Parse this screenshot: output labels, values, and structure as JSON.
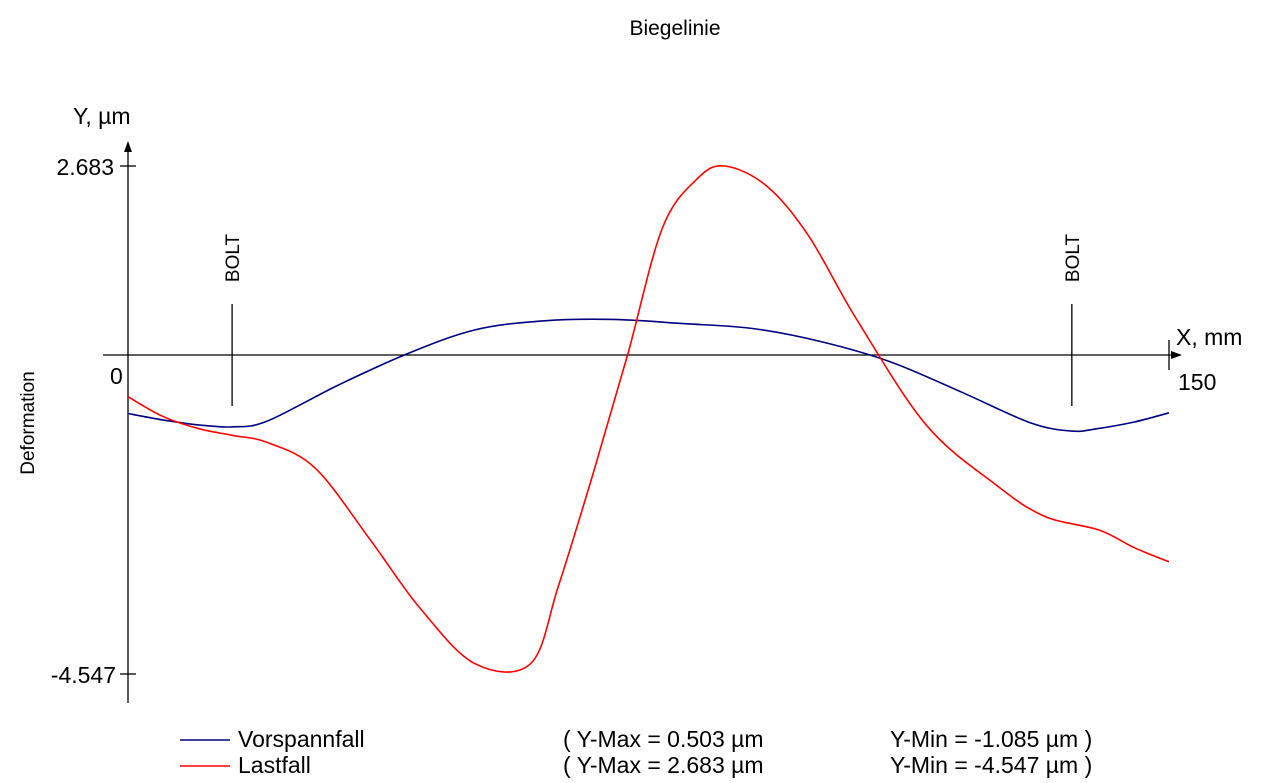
{
  "chart_data": {
    "type": "line",
    "title": "Biegelinie",
    "ylabel": "Deformation",
    "y_axis_label": "Y, µm",
    "x_axis_label": "X, mm",
    "xlim": [
      0,
      150
    ],
    "ylim": [
      -4.547,
      2.683
    ],
    "y_ticks": [
      "2.683",
      "-4.547"
    ],
    "x_ticks": [
      "0",
      "150"
    ],
    "markers": [
      {
        "label": "BOLT",
        "x": 15
      },
      {
        "label": "BOLT",
        "x": 136
      }
    ],
    "series": [
      {
        "name": "Vorspannfall",
        "color": "#00007f",
        "x": [
          0,
          5,
          10,
          15,
          20,
          30,
          40,
          50,
          60,
          70,
          80,
          90,
          100,
          110,
          120,
          130,
          136,
          140,
          145,
          150
        ],
        "values": [
          -0.84,
          -0.93,
          -1.0,
          -1.03,
          -0.95,
          -0.45,
          0.0,
          0.35,
          0.48,
          0.5,
          0.44,
          0.37,
          0.18,
          -0.11,
          -0.53,
          -0.97,
          -1.09,
          -1.05,
          -0.96,
          -0.83
        ],
        "max_label": "( Y-Max = 0.503 µm",
        "min_label": "Y-Min = -1.085 µm )"
      },
      {
        "name": "Lastfall",
        "color": "#ff0000",
        "x": [
          0,
          5,
          10,
          15,
          20,
          27,
          35,
          42,
          50,
          58,
          62,
          67,
          72,
          77,
          82,
          86,
          92,
          98,
          105,
          115,
          125,
          132,
          140,
          145,
          150
        ],
        "values": [
          -0.6,
          -0.88,
          -1.05,
          -1.15,
          -1.25,
          -1.62,
          -2.65,
          -3.6,
          -4.4,
          -4.4,
          -3.3,
          -1.7,
          0.0,
          1.8,
          2.5,
          2.683,
          2.4,
          1.7,
          0.5,
          -1.0,
          -1.85,
          -2.3,
          -2.5,
          -2.75,
          -2.95
        ],
        "max_label": "( Y-Max = 2.683 µm",
        "min_label": "Y-Min = -4.547 µm )"
      }
    ]
  }
}
